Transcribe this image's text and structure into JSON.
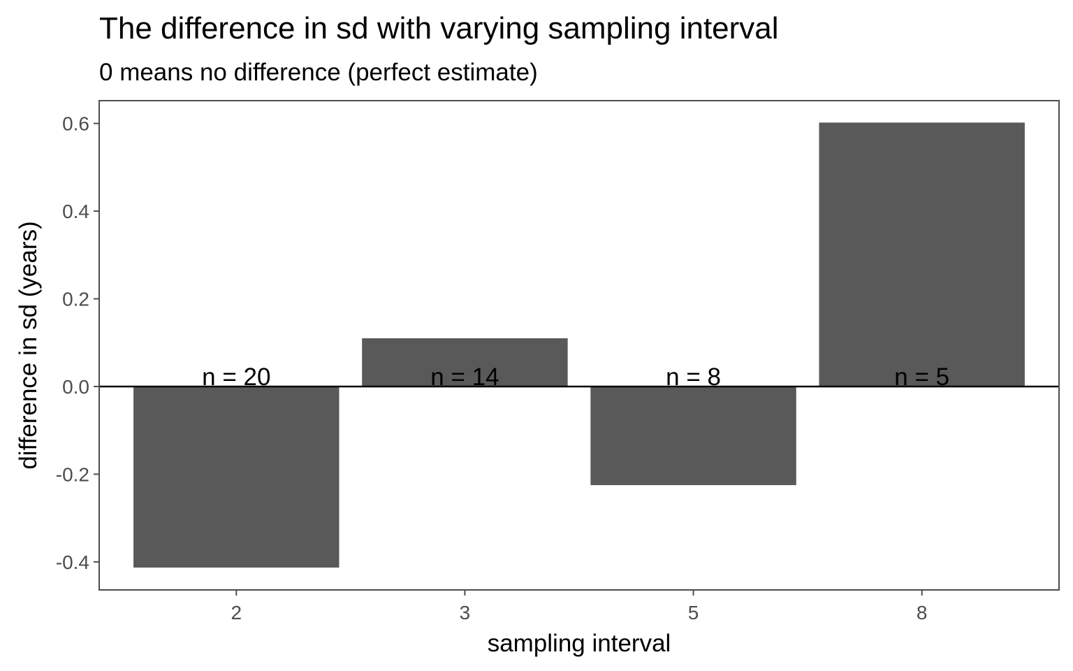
{
  "chart_data": {
    "type": "bar",
    "title": "The difference in sd with varying sampling interval",
    "subtitle": "0 means no difference (perfect estimate)",
    "xlabel": "sampling interval",
    "ylabel": "difference in sd (years)",
    "categories": [
      "2",
      "3",
      "5",
      "8"
    ],
    "values": [
      -0.413,
      0.11,
      -0.225,
      0.602
    ],
    "bar_labels": [
      "n = 20",
      "n = 14",
      "n = 8",
      "n = 5"
    ],
    "ylim": [
      -0.464,
      0.652
    ],
    "yticks": [
      -0.4,
      -0.2,
      0.0,
      0.2,
      0.4,
      0.6
    ],
    "ytick_labels": [
      "-0.4",
      "-0.2",
      "0.0",
      "0.2",
      "0.4",
      "0.6"
    ],
    "hline": 0,
    "grid": false,
    "legend": "none",
    "colors": {
      "bar": "#595959",
      "panel_border": "#4d4d4d",
      "hline": "#000000"
    }
  }
}
